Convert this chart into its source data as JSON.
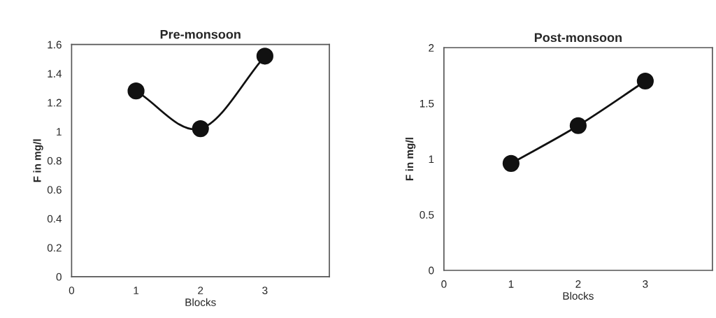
{
  "chart_data": [
    {
      "type": "line",
      "title": "Pre-monsoon",
      "xlabel": "Blocks",
      "ylabel": "F in mg/l",
      "x": [
        1,
        2,
        3
      ],
      "series": [
        {
          "color": "#111111",
          "values": [
            1.28,
            1.02,
            1.52
          ]
        }
      ],
      "xlim": [
        0,
        4
      ],
      "xticks": [
        0,
        1,
        2,
        3
      ],
      "ylim": [
        0,
        1.6
      ],
      "yticks": [
        0,
        0.2,
        0.4,
        0.6,
        0.8,
        1,
        1.2,
        1.4,
        1.6
      ],
      "marker": "circle",
      "line_style": "solid",
      "grid": false,
      "legend": false
    },
    {
      "type": "line",
      "title": "Post-monsoon",
      "xlabel": "Blocks",
      "ylabel": "F in mg/l",
      "x": [
        1,
        2,
        3
      ],
      "series": [
        {
          "color": "#111111",
          "values": [
            0.96,
            1.3,
            1.7
          ]
        }
      ],
      "xlim": [
        0,
        4
      ],
      "xticks": [
        0,
        1,
        2,
        3
      ],
      "ylim": [
        0,
        2
      ],
      "yticks": [
        0,
        0.5,
        1,
        1.5,
        2
      ],
      "marker": "circle",
      "line_style": "solid",
      "grid": false,
      "legend": false
    }
  ]
}
